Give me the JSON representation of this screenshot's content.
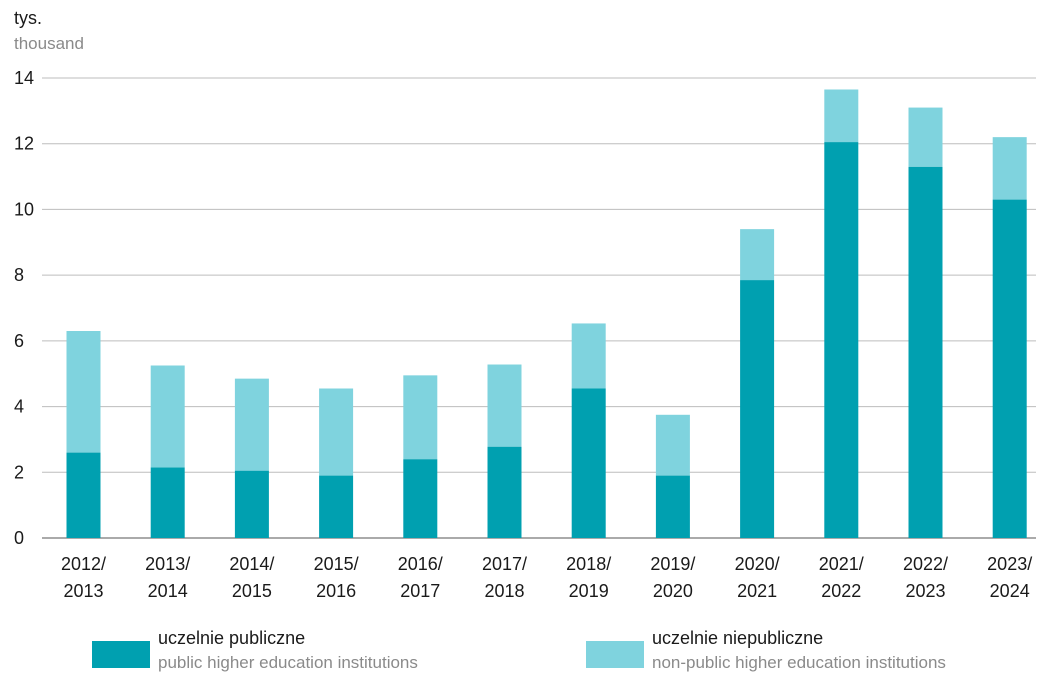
{
  "unit_label": {
    "pl": "tys.",
    "en": "thousand"
  },
  "chart_data": {
    "type": "bar",
    "stacked": true,
    "categories": [
      [
        "2012/",
        "2013"
      ],
      [
        "2013/",
        "2014"
      ],
      [
        "2014/",
        "2015"
      ],
      [
        "2015/",
        "2016"
      ],
      [
        "2016/",
        "2017"
      ],
      [
        "2017/",
        "2018"
      ],
      [
        "2018/",
        "2019"
      ],
      [
        "2019/",
        "2020"
      ],
      [
        "2020/",
        "2021"
      ],
      [
        "2021/",
        "2022"
      ],
      [
        "2022/",
        "2023"
      ],
      [
        "2023/",
        "2024"
      ]
    ],
    "series": [
      {
        "name": "uczelnie publiczne",
        "name_en": "public higher education institutions",
        "color": "#00a0b0",
        "values": [
          2.6,
          2.15,
          2.05,
          1.9,
          2.4,
          2.78,
          4.55,
          1.9,
          7.85,
          12.05,
          11.3,
          10.3
        ]
      },
      {
        "name": "uczelnie niepubliczne",
        "name_en": "non-public higher education institutions",
        "color": "#7fd3de",
        "values": [
          3.7,
          3.1,
          2.8,
          2.65,
          2.55,
          2.5,
          1.98,
          1.85,
          1.55,
          1.6,
          1.8,
          1.9
        ]
      }
    ],
    "yticks": [
      0,
      2,
      4,
      6,
      8,
      10,
      12,
      14
    ],
    "ylim": [
      0,
      14
    ],
    "grid": true,
    "legend_position": "bottom"
  }
}
